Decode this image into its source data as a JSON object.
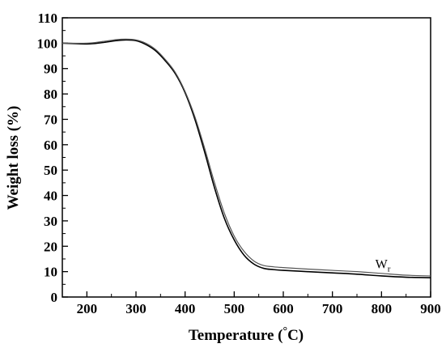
{
  "chart_data": {
    "type": "line",
    "xlabel": "Temperature (°C)",
    "xlabel_parts": {
      "prefix": "Temperature (",
      "degree": "°",
      "suffix": "C)"
    },
    "ylabel": "Weight loss (%)",
    "xlim": [
      150,
      900
    ],
    "ylim": [
      0,
      110
    ],
    "x_ticks": [
      200,
      300,
      400,
      500,
      600,
      700,
      800,
      900
    ],
    "y_ticks": [
      0,
      10,
      20,
      30,
      40,
      50,
      60,
      70,
      80,
      90,
      100,
      110
    ],
    "grid": false,
    "annotation": {
      "text": "W",
      "subscript": "r",
      "x": 845,
      "y": 12
    },
    "series": [
      {
        "x": [
          150,
          200,
          230,
          260,
          280,
          300,
          320,
          340,
          360,
          380,
          400,
          420,
          440,
          460,
          480,
          500,
          520,
          540,
          560,
          580,
          600,
          650,
          700,
          750,
          800,
          850,
          900
        ],
        "y": [
          100,
          99.7,
          100.2,
          101,
          101.3,
          101,
          99.5,
          97,
          93,
          88,
          80.5,
          70,
          57,
          43,
          31,
          22.5,
          16.5,
          13,
          11.3,
          10.8,
          10.5,
          10,
          9.5,
          9,
          8.3,
          7.8,
          7.6
        ]
      },
      {
        "x": [
          150,
          200,
          230,
          260,
          280,
          300,
          320,
          340,
          360,
          380,
          400,
          420,
          440,
          460,
          480,
          500,
          520,
          540,
          560,
          580,
          600,
          650,
          700,
          750,
          800,
          850,
          900
        ],
        "y": [
          100,
          100,
          100.6,
          101.4,
          101.6,
          101.3,
          100,
          97.5,
          93.5,
          88.5,
          81,
          71,
          58.5,
          45,
          33,
          24,
          18,
          14.2,
          12.4,
          11.9,
          11.6,
          11,
          10.5,
          10,
          9.3,
          8.6,
          8.3
        ]
      }
    ]
  }
}
